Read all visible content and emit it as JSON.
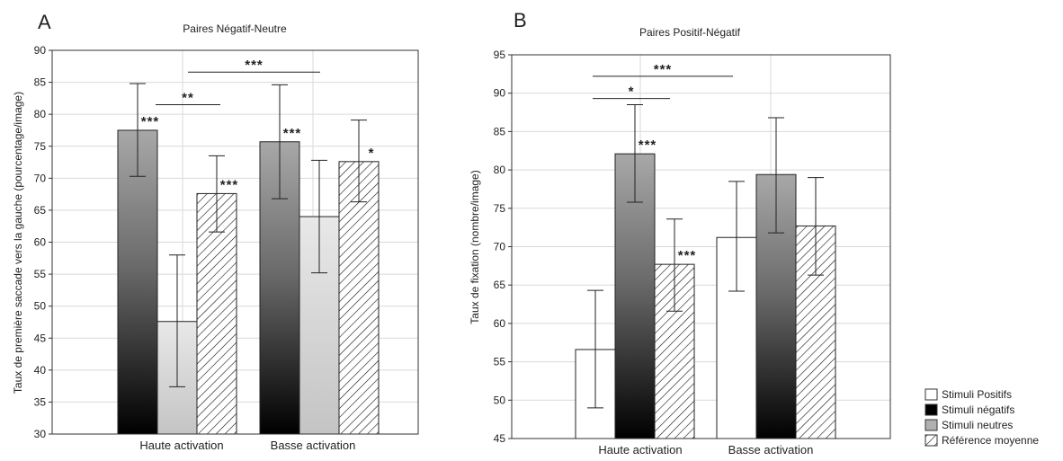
{
  "chart_data": [
    {
      "type": "bar",
      "panel": "A",
      "title": "Paires Négatif-Neutre",
      "ylabel": "Taux de première saccade vers la gauche (pourcentage/image)",
      "xlabel": "",
      "ylim": [
        30,
        90
      ],
      "yticks": [
        "30",
        "35",
        "40",
        "45",
        "50",
        "55",
        "60",
        "65",
        "70",
        "75",
        "80",
        "85",
        "90"
      ],
      "categories": [
        "Haute activation",
        "Basse activation"
      ],
      "series": [
        {
          "name": "Stimuli négatifs",
          "values": [
            77.5,
            75.7
          ],
          "err_low": [
            70.3,
            66.8
          ],
          "err_high": [
            84.8,
            84.6
          ],
          "sig": [
            "***",
            "***"
          ]
        },
        {
          "name": "Stimuli neutres",
          "values": [
            47.6,
            64.0
          ],
          "err_low": [
            37.4,
            55.2
          ],
          "err_high": [
            58.0,
            72.8
          ],
          "sig": [
            "",
            ""
          ]
        },
        {
          "name": "Référence moyenne",
          "values": [
            67.6,
            72.6
          ],
          "err_low": [
            61.6,
            66.3
          ],
          "err_high": [
            73.5,
            79.1
          ],
          "sig": [
            "***",
            "*"
          ]
        }
      ],
      "brackets": [
        {
          "label": "**",
          "level": 81.5
        },
        {
          "label": "***",
          "level": 86.6
        }
      ]
    },
    {
      "type": "bar",
      "panel": "B",
      "title": "Paires Positif-Négatif",
      "ylabel": "Taux de fixation (nombre/image)",
      "xlabel": "",
      "ylim": [
        45,
        95
      ],
      "yticks": [
        "45",
        "50",
        "55",
        "60",
        "65",
        "70",
        "75",
        "80",
        "85",
        "90",
        "95"
      ],
      "categories": [
        "Haute activation",
        "Basse activation"
      ],
      "series": [
        {
          "name": "Stimuli Positifs",
          "values": [
            56.6,
            71.2
          ],
          "err_low": [
            49.0,
            64.2
          ],
          "err_high": [
            64.3,
            78.5
          ],
          "sig": [
            "",
            ""
          ]
        },
        {
          "name": "Stimuli négatifs",
          "values": [
            82.1,
            79.4
          ],
          "err_low": [
            75.8,
            71.8
          ],
          "err_high": [
            88.5,
            86.8
          ],
          "sig": [
            "***",
            ""
          ]
        },
        {
          "name": "Référence moyenne",
          "values": [
            67.7,
            72.7
          ],
          "err_low": [
            61.6,
            66.3
          ],
          "err_high": [
            73.6,
            79.0
          ],
          "sig": [
            "***",
            ""
          ]
        }
      ],
      "brackets": [
        {
          "label": "*",
          "level": 89.3
        },
        {
          "label": "***",
          "level": 92.2
        }
      ]
    }
  ],
  "legend": {
    "items": [
      {
        "label": "Stimuli Positifs",
        "swatch": "white"
      },
      {
        "label": "Stimuli négatifs",
        "swatch": "black"
      },
      {
        "label": "Stimuli neutres",
        "swatch": "gray"
      },
      {
        "label": "Référence moyenne",
        "swatch": "hatch"
      }
    ]
  },
  "colors": {
    "grid": "#d9d9d9",
    "frame": "#333333",
    "neutral_fill": "#c4c4c4",
    "positive_fill": "#ffffff"
  }
}
